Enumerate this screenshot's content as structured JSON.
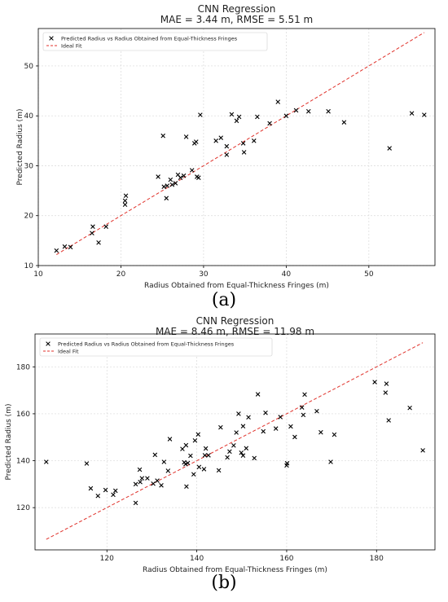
{
  "figures": [
    {
      "panel": "(a)",
      "chart_data": {
        "type": "scatter",
        "title": "CNN Regression",
        "subtitle": "MAE = 3.44 m, RMSE = 5.51 m",
        "xlabel": "Radius Obtained from Equal-Thickness Fringes (m)",
        "ylabel": "Predicted Radius (m)",
        "xlim": [
          10,
          58
        ],
        "ylim": [
          10,
          57.5
        ],
        "xticks": [
          10,
          20,
          30,
          40,
          50
        ],
        "yticks": [
          10,
          20,
          30,
          40,
          50
        ],
        "grid": true,
        "legend_position": "top-left",
        "series": [
          {
            "name": "Predicted Radius vs Radius Obtained from Equal-Thickness Fringes",
            "marker": "x",
            "color": "#000000",
            "points": [
              [
                12.2,
                13.0
              ],
              [
                13.2,
                13.8
              ],
              [
                13.9,
                13.7
              ],
              [
                16.5,
                16.5
              ],
              [
                16.6,
                17.8
              ],
              [
                17.3,
                14.6
              ],
              [
                18.2,
                17.8
              ],
              [
                20.5,
                22.2
              ],
              [
                20.5,
                23.0
              ],
              [
                20.6,
                24.0
              ],
              [
                24.5,
                27.8
              ],
              [
                25.2,
                25.8
              ],
              [
                25.1,
                36.0
              ],
              [
                25.5,
                23.5
              ],
              [
                25.6,
                26.0
              ],
              [
                26.0,
                27.2
              ],
              [
                26.2,
                26.2
              ],
              [
                26.6,
                26.5
              ],
              [
                26.9,
                28.2
              ],
              [
                27.2,
                27.6
              ],
              [
                27.6,
                28.0
              ],
              [
                27.9,
                35.8
              ],
              [
                28.6,
                29.1
              ],
              [
                28.9,
                34.5
              ],
              [
                29.1,
                34.8
              ],
              [
                29.2,
                27.8
              ],
              [
                29.4,
                27.6
              ],
              [
                29.6,
                40.2
              ],
              [
                31.5,
                35.0
              ],
              [
                32.1,
                35.6
              ],
              [
                32.8,
                32.2
              ],
              [
                32.8,
                33.9
              ],
              [
                33.4,
                40.3
              ],
              [
                34.0,
                39.0
              ],
              [
                34.3,
                39.8
              ],
              [
                34.9,
                32.7
              ],
              [
                34.8,
                34.5
              ],
              [
                36.1,
                35.0
              ],
              [
                36.5,
                39.8
              ],
              [
                38.0,
                38.5
              ],
              [
                39.0,
                42.8
              ],
              [
                40.0,
                40.0
              ],
              [
                41.2,
                41.1
              ],
              [
                42.7,
                40.9
              ],
              [
                45.1,
                40.9
              ],
              [
                47.0,
                38.7
              ],
              [
                52.5,
                33.5
              ],
              [
                55.2,
                40.5
              ],
              [
                56.7,
                40.2
              ]
            ]
          },
          {
            "name": "Ideal Fit",
            "style": "dashed",
            "color": "#e0322b",
            "line": [
              [
                12.2,
                12.2
              ],
              [
                56.7,
                56.7
              ]
            ]
          }
        ]
      }
    },
    {
      "panel": "(b)",
      "chart_data": {
        "type": "scatter",
        "title": "CNN Regression",
        "subtitle": "MAE = 8.46 m, RMSE = 11.98 m",
        "xlabel": "Radius Obtained from Equal-Thickness Fringes (m)",
        "ylabel": "Predicted Radius (m)",
        "xlim": [
          104,
          193
        ],
        "ylim": [
          102,
          194
        ],
        "xticks": [
          120,
          140,
          160,
          180
        ],
        "yticks": [
          120,
          140,
          160,
          180
        ],
        "grid": true,
        "legend_position": "top-left",
        "series": [
          {
            "name": "Predicted Radius vs Radius Obtained from Equal-Thickness Fringes",
            "marker": "x",
            "color": "#000000",
            "points": [
              [
                106.5,
                139.5
              ],
              [
                115.5,
                138.8
              ],
              [
                116.4,
                128.2
              ],
              [
                118.0,
                125.0
              ],
              [
                119.7,
                127.5
              ],
              [
                121.4,
                125.5
              ],
              [
                121.9,
                127.2
              ],
              [
                126.4,
                122.0
              ],
              [
                126.4,
                130.0
              ],
              [
                127.3,
                136.2
              ],
              [
                127.4,
                130.9
              ],
              [
                127.8,
                132.5
              ],
              [
                129.0,
                132.5
              ],
              [
                130.3,
                130.2
              ],
              [
                130.7,
                142.5
              ],
              [
                131.2,
                131.5
              ],
              [
                132.1,
                129.5
              ],
              [
                132.7,
                139.5
              ],
              [
                133.6,
                135.7
              ],
              [
                134.0,
                149.2
              ],
              [
                136.8,
                145.0
              ],
              [
                137.2,
                139.3
              ],
              [
                137.5,
                138.5
              ],
              [
                137.6,
                146.6
              ],
              [
                137.7,
                129.0
              ],
              [
                138.0,
                139.0
              ],
              [
                138.6,
                142.1
              ],
              [
                139.3,
                134.2
              ],
              [
                139.6,
                148.6
              ],
              [
                140.3,
                151.2
              ],
              [
                140.5,
                137.3
              ],
              [
                141.6,
                136.4
              ],
              [
                141.8,
                142.3
              ],
              [
                142.0,
                145.2
              ],
              [
                142.6,
                142.3
              ],
              [
                144.9,
                135.9
              ],
              [
                145.3,
                154.2
              ],
              [
                146.8,
                141.4
              ],
              [
                147.3,
                143.9
              ],
              [
                148.2,
                146.5
              ],
              [
                148.8,
                152.0
              ],
              [
                149.3,
                160.0
              ],
              [
                149.9,
                143.4
              ],
              [
                150.3,
                142.2
              ],
              [
                150.3,
                154.7
              ],
              [
                151.0,
                145.3
              ],
              [
                151.5,
                158.5
              ],
              [
                152.8,
                141.1
              ],
              [
                153.6,
                168.3
              ],
              [
                154.8,
                152.5
              ],
              [
                155.3,
                160.4
              ],
              [
                157.6,
                153.7
              ],
              [
                158.6,
                158.6
              ],
              [
                160.0,
                138.0
              ],
              [
                160.1,
                138.9
              ],
              [
                160.9,
                154.6
              ],
              [
                161.8,
                150.1
              ],
              [
                163.4,
                162.7
              ],
              [
                163.7,
                159.5
              ],
              [
                164.0,
                168.2
              ],
              [
                166.7,
                161.1
              ],
              [
                167.6,
                152.1
              ],
              [
                169.8,
                139.5
              ],
              [
                170.6,
                151.1
              ],
              [
                179.6,
                173.5
              ],
              [
                182.0,
                169.0
              ],
              [
                182.2,
                172.8
              ],
              [
                182.7,
                157.2
              ],
              [
                187.4,
                162.5
              ],
              [
                190.3,
                144.4
              ]
            ]
          },
          {
            "name": "Ideal Fit",
            "style": "dashed",
            "color": "#e0322b",
            "line": [
              [
                106.5,
                106.5
              ],
              [
                190.3,
                190.3
              ]
            ]
          }
        ]
      }
    }
  ]
}
